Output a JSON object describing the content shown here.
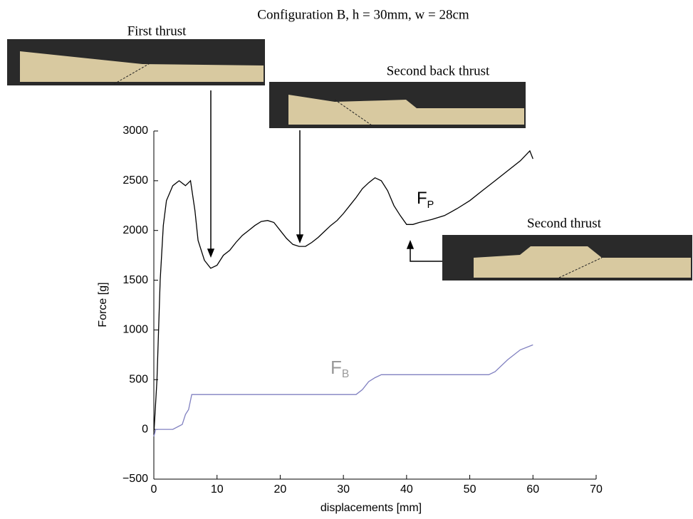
{
  "chart_data": {
    "type": "line",
    "title": "Configuration B, h = 30mm, w = 28cm",
    "xlabel": "displacements [mm]",
    "ylabel": "Force [g]",
    "xlim": [
      0,
      70
    ],
    "ylim": [
      -500,
      3000
    ],
    "xticks": [
      0,
      10,
      20,
      30,
      40,
      50,
      60,
      70
    ],
    "yticks": [
      {
        "value": -500,
        "label": "−500"
      },
      0,
      500,
      1000,
      1500,
      2000,
      2500,
      3000
    ],
    "annotations": [
      "First thrust",
      "Second back thrust",
      "Second thrust"
    ],
    "series": [
      {
        "name": "F",
        "subscript": "P",
        "color": "#000000",
        "x": [
          0,
          0.5,
          1,
          1.5,
          2,
          3,
          4,
          5,
          5.8,
          6.5,
          7,
          8,
          9,
          10,
          11,
          12,
          13,
          14,
          15,
          16,
          17,
          18,
          19,
          20,
          21,
          22,
          23,
          24,
          25,
          26,
          27,
          28,
          29,
          30,
          31,
          32,
          33,
          34,
          35,
          36,
          37,
          38,
          39,
          40,
          41,
          42,
          44,
          46,
          48,
          50,
          52,
          54,
          56,
          58,
          59.5,
          60
        ],
        "values": [
          -50,
          500,
          1500,
          2050,
          2300,
          2450,
          2500,
          2450,
          2500,
          2200,
          1900,
          1700,
          1620,
          1650,
          1750,
          1800,
          1880,
          1950,
          2000,
          2050,
          2090,
          2100,
          2080,
          2000,
          1920,
          1860,
          1840,
          1840,
          1880,
          1930,
          1990,
          2050,
          2100,
          2170,
          2250,
          2330,
          2420,
          2480,
          2530,
          2500,
          2400,
          2250,
          2150,
          2060,
          2060,
          2080,
          2110,
          2150,
          2220,
          2300,
          2400,
          2500,
          2600,
          2700,
          2800,
          2720
        ]
      },
      {
        "name": "F",
        "subscript": "B",
        "color": "#8080c0",
        "x": [
          0,
          0.3,
          3,
          4.5,
          5,
          5.5,
          6,
          32,
          33,
          34,
          35,
          36,
          53,
          54,
          56,
          58,
          60
        ],
        "values": [
          -70,
          0,
          0,
          50,
          150,
          200,
          350,
          350,
          400,
          480,
          520,
          550,
          550,
          580,
          700,
          800,
          850
        ]
      }
    ]
  }
}
